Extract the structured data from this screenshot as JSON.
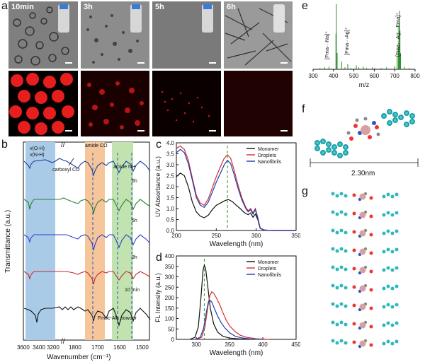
{
  "panel_letters": {
    "a": "a",
    "b": "b",
    "c": "c",
    "d": "d",
    "e": "e",
    "f": "f",
    "g": "g"
  },
  "panel_a": {
    "time_labels": [
      "10min",
      "3h",
      "5h",
      "6h"
    ]
  },
  "chart_data": [
    {
      "id": "b",
      "type": "line",
      "xlabel": "Wavenumber (cm⁻¹)",
      "ylabel": "Transmittance (a.u.)",
      "x_ticks_left": [
        "3600",
        "3400",
        "3200",
        "1800"
      ],
      "x_ticks_right": [
        "1700",
        "1600",
        "1500"
      ],
      "series": [
        {
          "name": "6h",
          "color": "#1a3f9e"
        },
        {
          "name": "5h",
          "color": "#2e7d32"
        },
        {
          "name": "3h",
          "color": "#2e42c9"
        },
        {
          "name": "10 min",
          "color": "#c62828"
        },
        {
          "name": "Fmoc-Ala powder",
          "color": "#111111"
        }
      ],
      "band_labels": {
        "oh": "v(O-H)",
        "nh": "v(N-H)",
        "carboxyl": "carboxyl CO",
        "amide_co": "amide CO",
        "amide_nh": "amide NH"
      },
      "band_colors": {
        "oh": "#a9cbe8",
        "amide_co": "#f6c59a",
        "amide_nh": "#c2e3b0"
      }
    },
    {
      "id": "c",
      "type": "line",
      "xlabel": "Wavelength (nm)",
      "ylabel": "UV Absorbance (a.u.)",
      "xlim": [
        200,
        350
      ],
      "ylim": [
        0.0,
        4.0
      ],
      "x_ticks": [
        "200",
        "250",
        "300",
        "350"
      ],
      "y_ticks": [
        "0.0",
        "0.5",
        "1.0",
        "1.5",
        "2.0",
        "2.5",
        "3.0",
        "3.5",
        "4.0"
      ],
      "dashed_x": 264,
      "series": [
        {
          "name": "Monomer",
          "color": "#111111",
          "points": [
            [
              200,
              2.45
            ],
            [
              205,
              2.62
            ],
            [
              210,
              2.5
            ],
            [
              215,
              2.0
            ],
            [
              220,
              1.3
            ],
            [
              225,
              0.85
            ],
            [
              230,
              0.65
            ],
            [
              235,
              0.58
            ],
            [
              240,
              0.7
            ],
            [
              245,
              0.95
            ],
            [
              250,
              1.15
            ],
            [
              255,
              1.25
            ],
            [
              260,
              1.35
            ],
            [
              265,
              1.42
            ],
            [
              270,
              1.32
            ],
            [
              275,
              1.15
            ],
            [
              280,
              1.0
            ],
            [
              285,
              0.82
            ],
            [
              290,
              0.72
            ],
            [
              293,
              0.8
            ],
            [
              296,
              0.6
            ],
            [
              299,
              0.75
            ],
            [
              302,
              0.5
            ],
            [
              305,
              0.1
            ],
            [
              310,
              0.02
            ],
            [
              320,
              0.0
            ],
            [
              350,
              0.0
            ]
          ]
        },
        {
          "name": "Droplets",
          "color": "#d32f2f",
          "points": [
            [
              200,
              3.75
            ],
            [
              205,
              3.85
            ],
            [
              210,
              3.7
            ],
            [
              215,
              3.2
            ],
            [
              220,
              2.4
            ],
            [
              225,
              1.6
            ],
            [
              230,
              1.25
            ],
            [
              235,
              1.15
            ],
            [
              240,
              1.45
            ],
            [
              245,
              1.95
            ],
            [
              250,
              2.45
            ],
            [
              255,
              2.9
            ],
            [
              260,
              3.3
            ],
            [
              264,
              3.45
            ],
            [
              268,
              3.3
            ],
            [
              272,
              2.8
            ],
            [
              277,
              2.1
            ],
            [
              282,
              1.5
            ],
            [
              287,
              1.05
            ],
            [
              290,
              0.9
            ],
            [
              293,
              1.0
            ],
            [
              296,
              0.8
            ],
            [
              299,
              1.0
            ],
            [
              302,
              0.6
            ],
            [
              305,
              0.12
            ],
            [
              310,
              0.02
            ],
            [
              320,
              0.0
            ],
            [
              350,
              0.0
            ]
          ]
        },
        {
          "name": "Nanofibrils",
          "color": "#1e3ca8",
          "points": [
            [
              200,
              3.55
            ],
            [
              205,
              3.7
            ],
            [
              210,
              3.55
            ],
            [
              215,
              3.05
            ],
            [
              220,
              2.3
            ],
            [
              225,
              1.5
            ],
            [
              230,
              1.15
            ],
            [
              235,
              1.05
            ],
            [
              240,
              1.3
            ],
            [
              245,
              1.75
            ],
            [
              250,
              2.2
            ],
            [
              255,
              2.6
            ],
            [
              260,
              3.0
            ],
            [
              264,
              3.2
            ],
            [
              268,
              3.05
            ],
            [
              272,
              2.6
            ],
            [
              277,
              1.95
            ],
            [
              282,
              1.4
            ],
            [
              287,
              1.0
            ],
            [
              290,
              0.85
            ],
            [
              293,
              0.95
            ],
            [
              296,
              0.75
            ],
            [
              299,
              0.95
            ],
            [
              302,
              0.55
            ],
            [
              305,
              0.1
            ],
            [
              310,
              0.02
            ],
            [
              320,
              0.0
            ],
            [
              350,
              0.0
            ]
          ]
        }
      ]
    },
    {
      "id": "d",
      "type": "line",
      "xlabel": "Wavelength (nm)",
      "ylabel": "FL Intensity (a.u.)",
      "xlim": [
        270,
        450
      ],
      "ylim": [
        0,
        400
      ],
      "x_ticks": [
        "300",
        "350",
        "400",
        "450"
      ],
      "y_ticks": [
        "0",
        "50",
        "100",
        "150",
        "200",
        "250",
        "300",
        "350",
        "400"
      ],
      "dashed_x": 312,
      "series": [
        {
          "name": "Monomer",
          "color": "#111111",
          "points": [
            [
              290,
              0
            ],
            [
              298,
              10
            ],
            [
              303,
              60
            ],
            [
              307,
              200
            ],
            [
              310,
              330
            ],
            [
              312,
              355
            ],
            [
              314,
              340
            ],
            [
              317,
              260
            ],
            [
              321,
              150
            ],
            [
              326,
              75
            ],
            [
              332,
              35
            ],
            [
              340,
              15
            ],
            [
              350,
              6
            ],
            [
              365,
              2
            ],
            [
              380,
              0
            ]
          ]
        },
        {
          "name": "Droplets",
          "color": "#d32f2f",
          "points": [
            [
              300,
              0
            ],
            [
              308,
              10
            ],
            [
              313,
              60
            ],
            [
              317,
              150
            ],
            [
              320,
              205
            ],
            [
              323,
              228
            ],
            [
              326,
              222
            ],
            [
              330,
              200
            ],
            [
              335,
              168
            ],
            [
              340,
              128
            ],
            [
              345,
              92
            ],
            [
              350,
              65
            ],
            [
              358,
              38
            ],
            [
              366,
              20
            ],
            [
              375,
              10
            ],
            [
              390,
              3
            ],
            [
              410,
              0
            ]
          ]
        },
        {
          "name": "Nanofibrils",
          "color": "#1e3ca8",
          "points": [
            [
              298,
              0
            ],
            [
              306,
              10
            ],
            [
              311,
              55
            ],
            [
              315,
              130
            ],
            [
              318,
              178
            ],
            [
              320,
              188
            ],
            [
              323,
              180
            ],
            [
              327,
              150
            ],
            [
              332,
              112
            ],
            [
              337,
              82
            ],
            [
              343,
              55
            ],
            [
              350,
              32
            ],
            [
              358,
              16
            ],
            [
              368,
              7
            ],
            [
              380,
              2
            ],
            [
              400,
              0
            ]
          ]
        }
      ]
    },
    {
      "id": "e",
      "type": "bar",
      "xlabel": "m/z",
      "xlim": [
        300,
        800
      ],
      "x_ticks": [
        "300",
        "400",
        "500",
        "600",
        "700",
        "800"
      ],
      "annotations": [
        "[Fma···Na]⁺",
        "[Fma···Ag]⁺",
        "[Fma···Ag···Fma]⁺"
      ],
      "color": "#2e8b2e",
      "x": [
        334,
        356,
        378,
        412,
        414,
        418,
        440,
        456,
        470,
        486,
        512,
        524,
        546,
        562,
        590,
        602,
        634,
        660,
        700,
        712,
        718,
        721,
        724,
        726,
        729,
        748,
        770
      ],
      "values": [
        0.02,
        0.03,
        0.04,
        0.55,
        1.0,
        0.25,
        0.12,
        0.03,
        0.08,
        0.02,
        0.06,
        0.03,
        0.04,
        0.02,
        0.03,
        0.02,
        0.02,
        0.03,
        0.05,
        0.2,
        0.35,
        0.7,
        0.9,
        0.6,
        0.25,
        0.04,
        0.02
      ]
    }
  ],
  "panel_f": {
    "scale_label": "2.30nm"
  }
}
